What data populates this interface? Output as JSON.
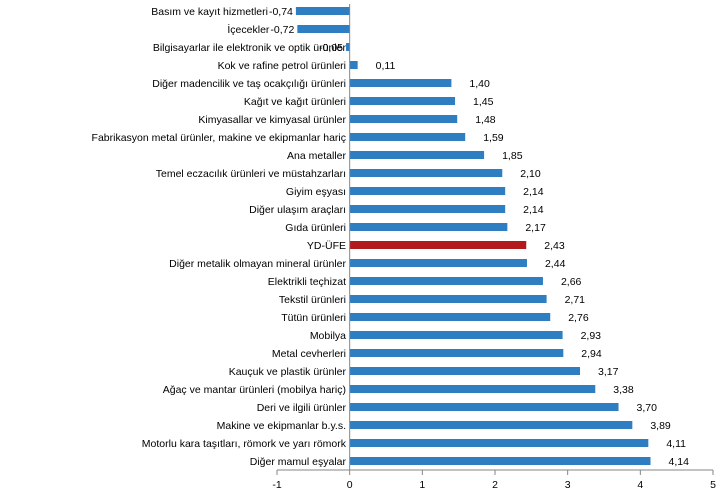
{
  "chart_data": {
    "type": "bar",
    "orientation": "horizontal",
    "title": "",
    "xlabel": "",
    "ylabel": "",
    "xlim": [
      -1,
      5
    ],
    "xticks": [
      "-1",
      "0",
      "1",
      "2",
      "3",
      "4",
      "5"
    ],
    "grid": false,
    "legend": "none",
    "decimal_separator": ",",
    "colors": {
      "default": "#2E7EC1",
      "highlight": "#B2191C"
    },
    "highlight_category": "YD-ÜFE",
    "categories": [
      "Basım ve kayıt hizmetleri",
      "İçecekler",
      "Bilgisayarlar ile elektronik ve optik ürünler",
      "Kok ve rafine petrol ürünleri",
      "Diğer madencilik ve taş ocakçılığı ürünleri",
      "Kağıt ve kağıt ürünleri",
      "Kimyasallar ve kimyasal ürünler",
      "Fabrikasyon metal ürünler, makine ve ekipmanlar hariç",
      "Ana metaller",
      "Temel eczacılık ürünleri ve müstahzarları",
      "Giyim eşyası",
      "Diğer ulaşım araçları",
      "Gıda ürünleri",
      "YD-ÜFE",
      "Diğer metalik olmayan mineral ürünler",
      "Elektrikli teçhizat",
      "Tekstil ürünleri",
      "Tütün ürünleri",
      "Mobilya",
      "Metal cevherleri",
      "Kauçuk ve plastik ürünler",
      "Ağaç ve mantar ürünleri (mobilya hariç)",
      "Deri ve ilgili ürünler",
      "Makine ve ekipmanlar b.y.s.",
      "Motorlu kara taşıtları, römork ve yarı römork",
      "Diğer mamul eşyalar"
    ],
    "values": [
      -0.74,
      -0.72,
      -0.05,
      0.11,
      1.4,
      1.45,
      1.48,
      1.59,
      1.85,
      2.1,
      2.14,
      2.14,
      2.17,
      2.43,
      2.44,
      2.66,
      2.71,
      2.76,
      2.93,
      2.94,
      3.17,
      3.38,
      3.7,
      3.89,
      4.11,
      4.14
    ],
    "value_labels": [
      "-0,74",
      "-0,72",
      "-0,05",
      "0,11",
      "1,40",
      "1,45",
      "1,48",
      "1,59",
      "1,85",
      "2,10",
      "2,14",
      "2,14",
      "2,17",
      "2,43",
      "2,44",
      "2,66",
      "2,71",
      "2,76",
      "2,93",
      "2,94",
      "3,17",
      "3,38",
      "3,70",
      "3,89",
      "4,11",
      "4,14"
    ]
  }
}
